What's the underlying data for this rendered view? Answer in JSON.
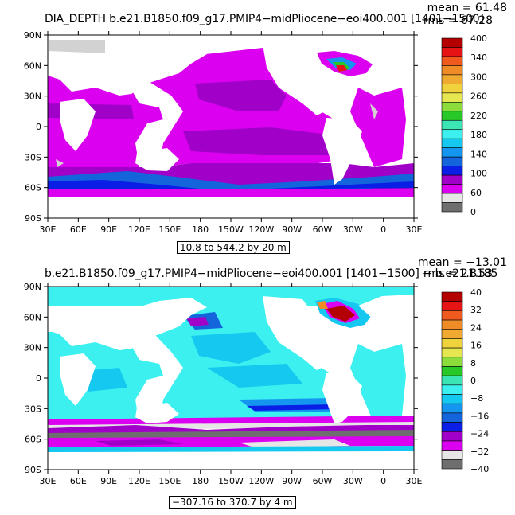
{
  "chart_data": [
    {
      "type": "heatmap",
      "title": "DIA_DEPTH b.e21.B1850.f09_g17.PMIP4−midPliocene−eoi400.001 [1401−1500]",
      "stats": {
        "mean": "mean = 61.48",
        "rms": "rms = 67.28"
      },
      "range_label": "10.8 to 544.2 by 20 m",
      "x_ticks": [
        "30E",
        "60E",
        "90E",
        "120E",
        "150E",
        "180",
        "150W",
        "120W",
        "90W",
        "60W",
        "30W",
        "0",
        "30E"
      ],
      "y_ticks": [
        "90N",
        "60N",
        "30N",
        "0",
        "30S",
        "60S",
        "90S"
      ],
      "colorbar": {
        "labels": [
          "400",
          "340",
          "300",
          "260",
          "220",
          "180",
          "140",
          "100",
          "60",
          "0"
        ],
        "colors": [
          "#b40000",
          "#e61414",
          "#f05a1e",
          "#f08c28",
          "#f0aa32",
          "#f0d23c",
          "#e6e650",
          "#8cdc3c",
          "#28c828",
          "#3ce6b4",
          "#3cf0f0",
          "#14c8f0",
          "#1496f0",
          "#1464dc",
          "#0a1ee6",
          "#a000c8",
          "#dc00f0",
          "#e6e6e6",
          "#6e6e6e"
        ],
        "min": 0,
        "max": 400
      }
    },
    {
      "type": "heatmap",
      "title": "b.e21.B1850.f09_g17.PMIP4−midPliocene−eoi400.001 [1401−1500] − b.e21.B185",
      "stats": {
        "mean": "mean = −13.01",
        "rms": "rms = 21.53"
      },
      "range_label": "−307.16 to 370.7 by 4 m",
      "x_ticks": [
        "30E",
        "60E",
        "90E",
        "120E",
        "150E",
        "180",
        "150W",
        "120W",
        "90W",
        "60W",
        "30W",
        "0",
        "30E"
      ],
      "y_ticks": [
        "90N",
        "60N",
        "30N",
        "0",
        "30S",
        "60S",
        "90S"
      ],
      "colorbar": {
        "labels": [
          "40",
          "32",
          "24",
          "16",
          "8",
          "0",
          "−8",
          "−16",
          "−24",
          "−32",
          "−40"
        ],
        "colors": [
          "#b40000",
          "#e61414",
          "#f05a1e",
          "#f08c28",
          "#f0aa32",
          "#f0d23c",
          "#e6e650",
          "#8cdc3c",
          "#28c828",
          "#3ce6b4",
          "#3cf0f0",
          "#14c8f0",
          "#1496f0",
          "#1464dc",
          "#0a1ee6",
          "#a000c8",
          "#dc00f0",
          "#e6e6e6",
          "#6e6e6e"
        ],
        "min": -40,
        "max": 40
      }
    }
  ]
}
